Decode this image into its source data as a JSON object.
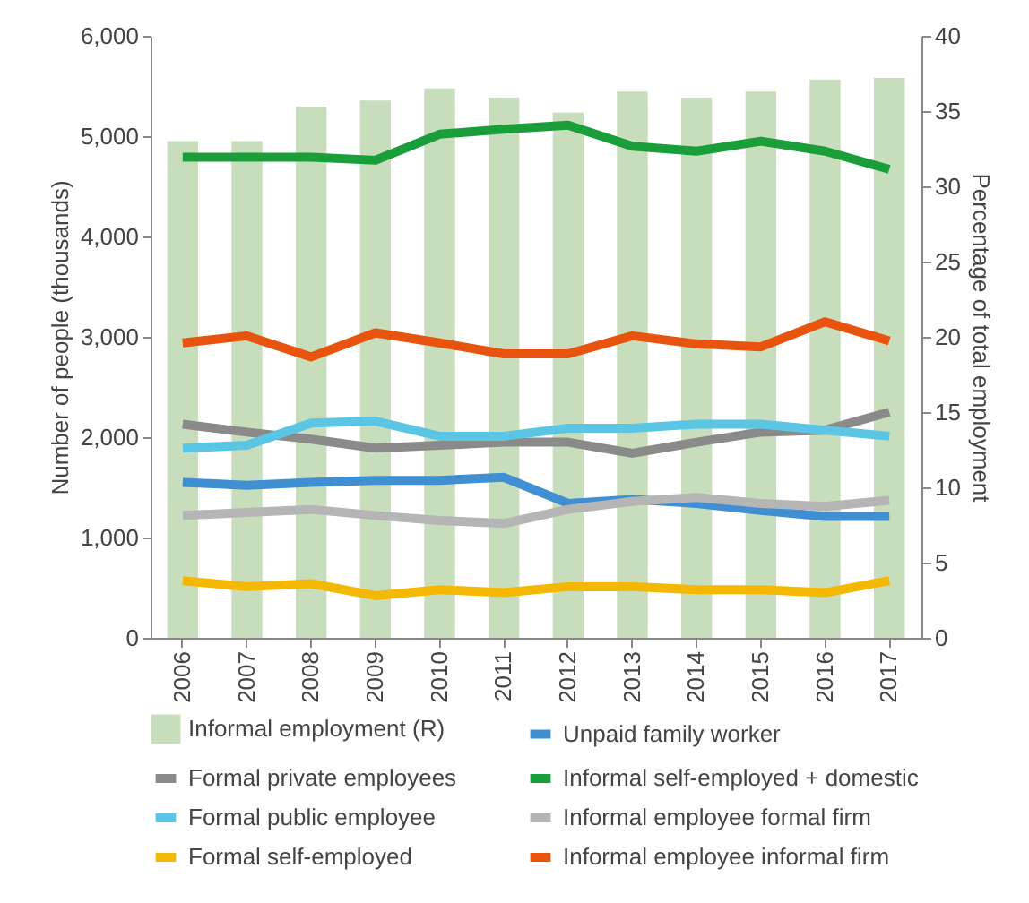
{
  "chart_data": {
    "type": "line",
    "xlabel": null,
    "ylabel": "Number of people (thousands)",
    "y2label": "Percentage of total employment",
    "categories": [
      "2006",
      "2007",
      "2008",
      "2009",
      "2010",
      "2011",
      "2012",
      "2013",
      "2014",
      "2015",
      "2016",
      "2017"
    ],
    "ylim": [
      0,
      6000
    ],
    "yticks": [
      {
        "value": 0,
        "label": "0"
      },
      {
        "value": 1000,
        "label": "1,000"
      },
      {
        "value": 2000,
        "label": "2,000"
      },
      {
        "value": 3000,
        "label": "3,000"
      },
      {
        "value": 4000,
        "label": "4,000"
      },
      {
        "value": 5000,
        "label": "5,000"
      },
      {
        "value": 6000,
        "label": "6,000"
      }
    ],
    "y2lim": [
      0,
      40
    ],
    "y2ticks": [
      0,
      5,
      10,
      15,
      20,
      25,
      30,
      35,
      40
    ],
    "legend": "bottom",
    "grid": false,
    "series": [
      {
        "name": "Informal employment (R)",
        "type": "bar",
        "axis": "y2",
        "color": "#c8ddbb",
        "values": [
          33.0,
          33.0,
          35.3,
          35.7,
          36.5,
          35.9,
          34.9,
          36.3,
          35.9,
          36.3,
          37.1,
          37.2
        ]
      },
      {
        "name": "Formal private employees",
        "color": "#8a8a8a",
        "values": [
          2130,
          2050,
          1980,
          1890,
          1920,
          1950,
          1950,
          1840,
          1950,
          2050,
          2070,
          2250
        ]
      },
      {
        "name": "Formal public employee",
        "color": "#5bc5e6",
        "values": [
          1890,
          1920,
          2140,
          2160,
          2010,
          2010,
          2090,
          2090,
          2130,
          2130,
          2070,
          2010
        ]
      },
      {
        "name": "Formal self-employed",
        "color": "#f5b800",
        "values": [
          570,
          510,
          540,
          420,
          480,
          450,
          510,
          510,
          480,
          480,
          450,
          570
        ]
      },
      {
        "name": "Unpaid family worker",
        "color": "#3f8fd2",
        "values": [
          1550,
          1520,
          1550,
          1570,
          1570,
          1600,
          1340,
          1380,
          1340,
          1270,
          1210,
          1210
        ]
      },
      {
        "name": "Informal self-employed + domestic",
        "color": "#1a9e3a",
        "values": [
          4790,
          4790,
          4790,
          4760,
          5020,
          5070,
          5110,
          4900,
          4850,
          4950,
          4850,
          4670
        ]
      },
      {
        "name": "Informal employee formal firm",
        "color": "#b5b5b5",
        "values": [
          1220,
          1250,
          1280,
          1220,
          1170,
          1140,
          1280,
          1360,
          1400,
          1340,
          1310,
          1370
        ]
      },
      {
        "name": "Informal employee informal firm",
        "color": "#e8530e",
        "values": [
          2940,
          3010,
          2800,
          3040,
          2940,
          2830,
          2830,
          3010,
          2930,
          2900,
          3150,
          2960
        ]
      }
    ]
  }
}
